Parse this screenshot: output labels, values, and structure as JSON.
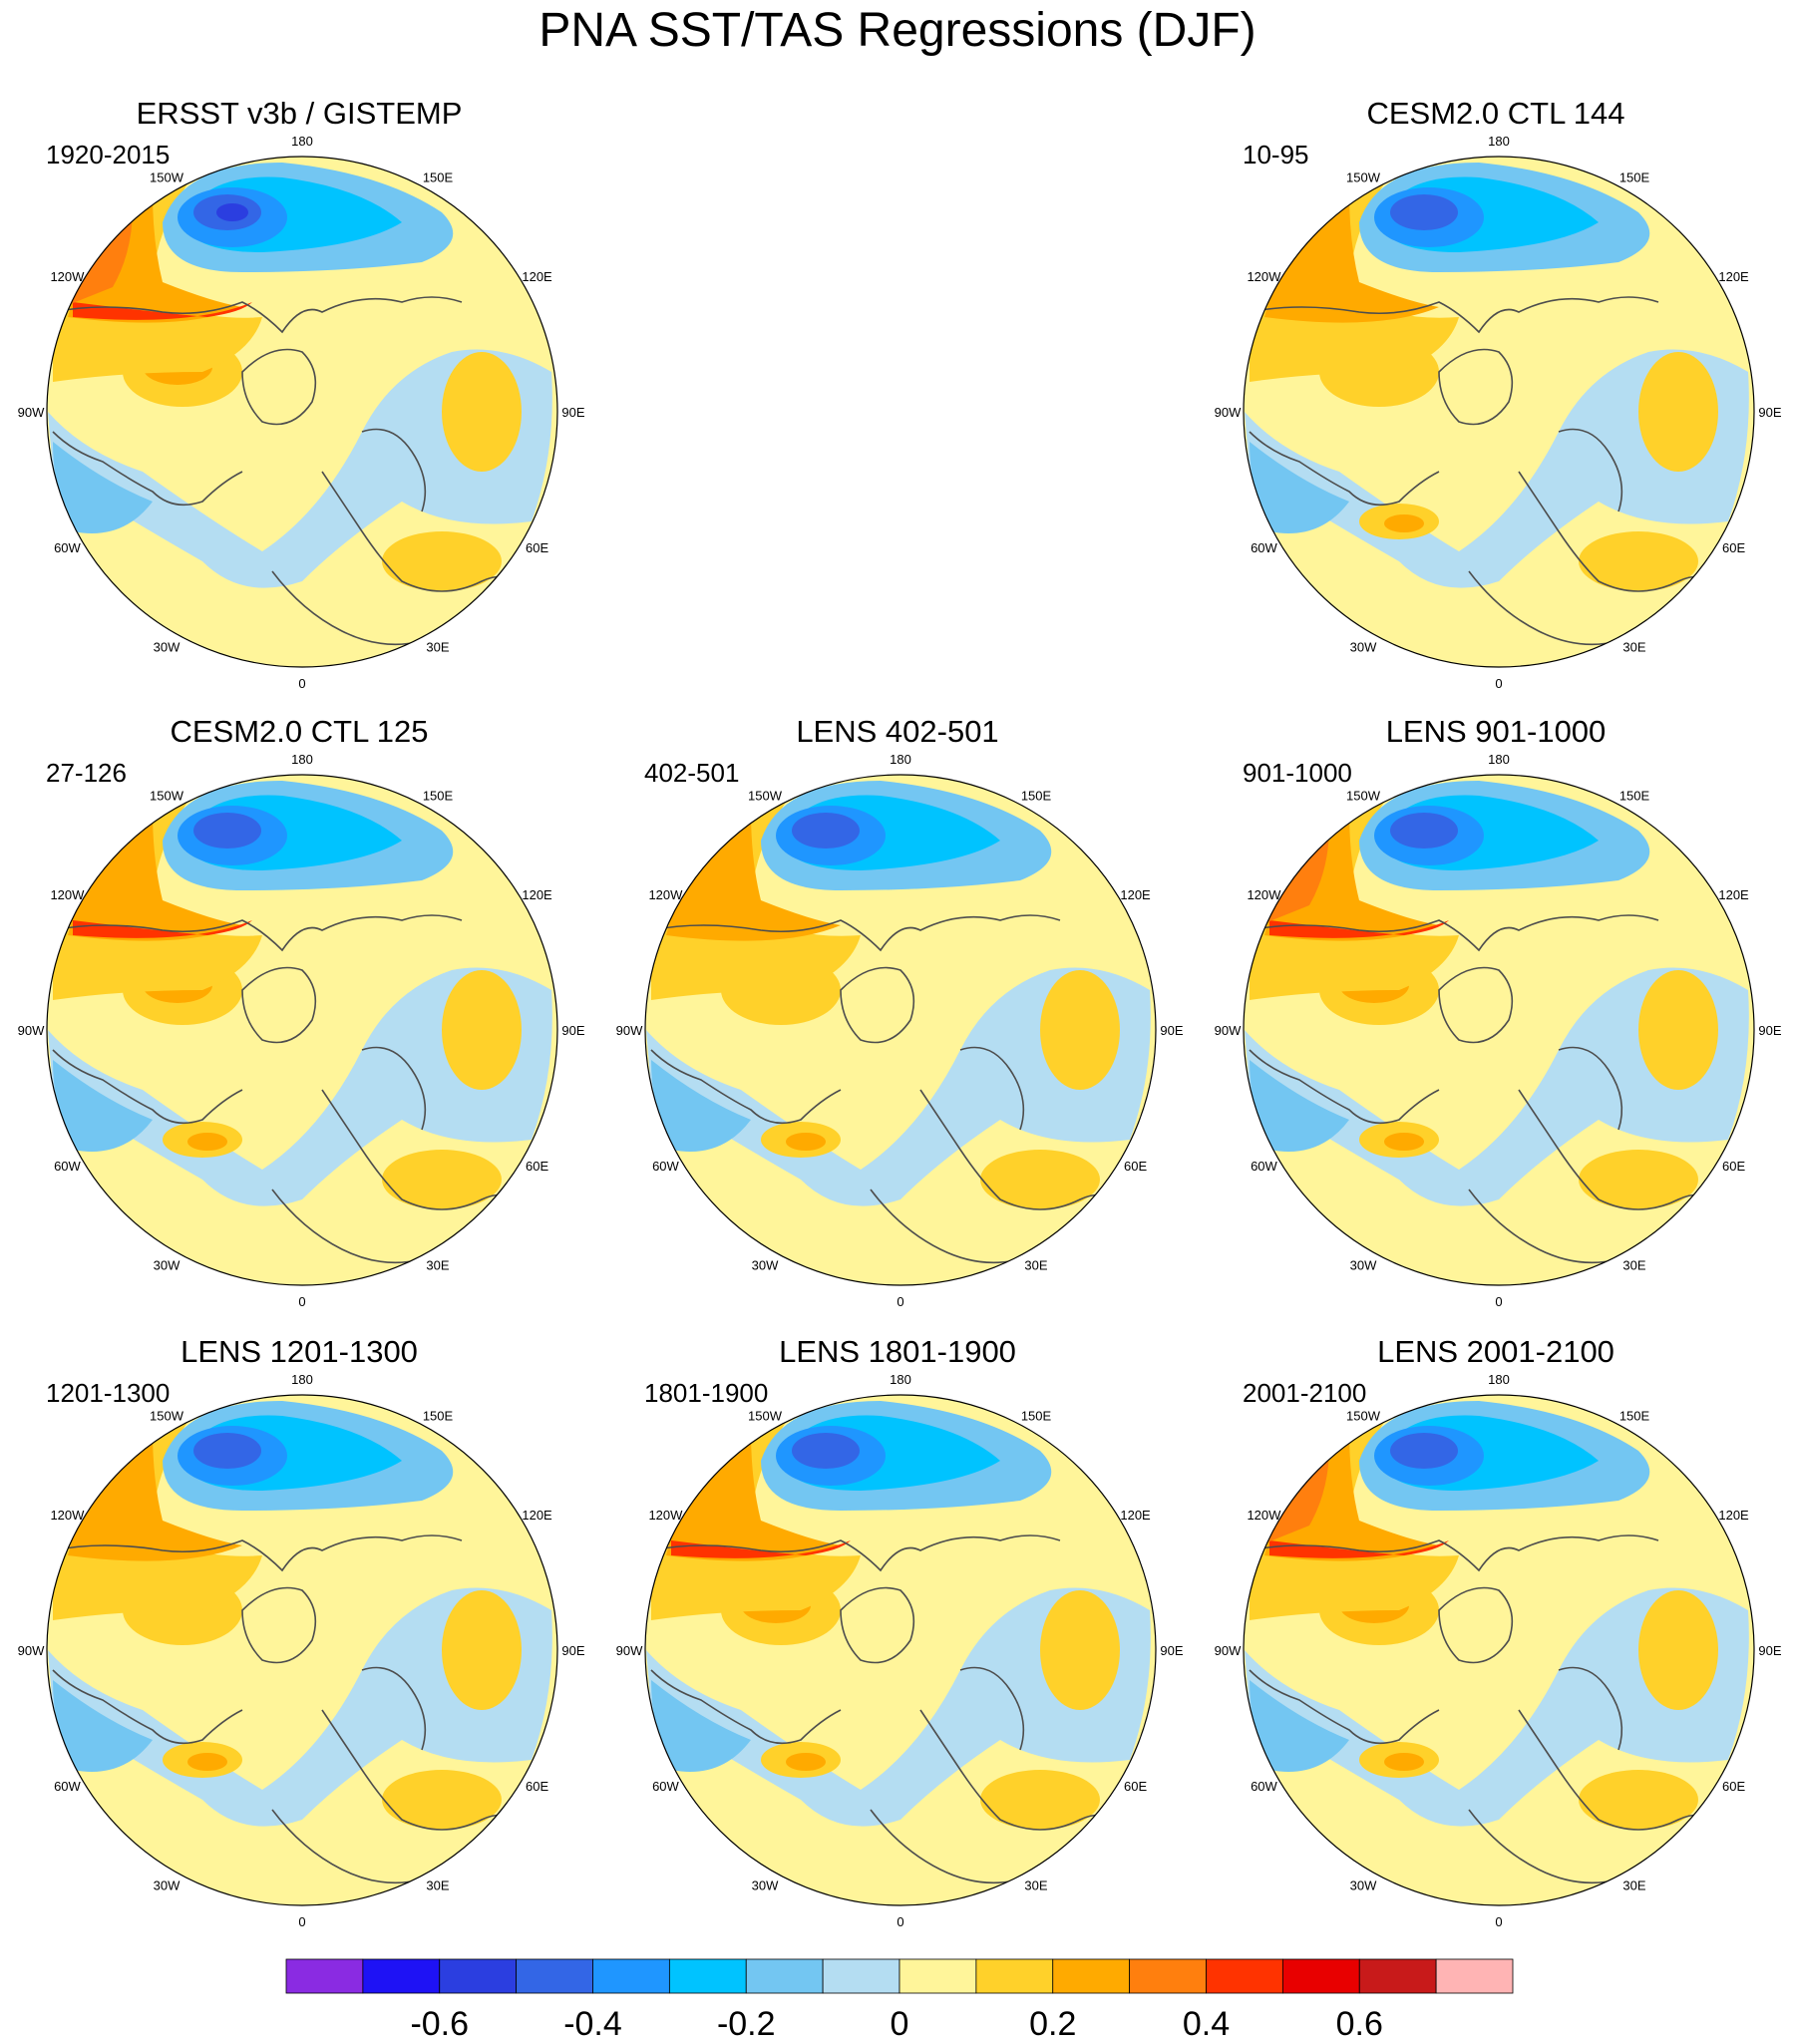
{
  "title": "PNA SST/TAS Regressions (DJF)",
  "lon_labels": [
    "180",
    "150E",
    "120E",
    "90E",
    "60E",
    "30E",
    "0",
    "30W",
    "60W",
    "90W",
    "120W",
    "150W"
  ],
  "panels": [
    {
      "title": "ERSST v3b / GISTEMP",
      "period": "1920-2015",
      "style": "obs"
    },
    {
      "title": "CESM2.0 CTL 144",
      "period": "10-95",
      "style": "ctl144"
    },
    {
      "title": "CESM2.0 CTL 125",
      "period": "27-126",
      "style": "ctl125"
    },
    {
      "title": "LENS 402-501",
      "period": "402-501",
      "style": "l402"
    },
    {
      "title": "LENS 901-1000",
      "period": "901-1000",
      "style": "l901"
    },
    {
      "title": "LENS 1201-1300",
      "period": "1201-1300",
      "style": "l1201"
    },
    {
      "title": "LENS 1801-1900",
      "period": "1801-1900",
      "style": "l1801"
    },
    {
      "title": "LENS 2001-2100",
      "period": "2001-2100",
      "style": "l2001"
    }
  ],
  "colorbar": {
    "colors": [
      "#8a2be2",
      "#1e12f5",
      "#2b3ee0",
      "#3366e6",
      "#1f96ff",
      "#00c3ff",
      "#73c6f2",
      "#b4ddf2",
      "#fff59a",
      "#ffd12a",
      "#ffaa00",
      "#ff7f0e",
      "#ff3300",
      "#e80000",
      "#c81a1a",
      "#ffb4b4"
    ],
    "labels": [
      "-0.6",
      "-0.4",
      "-0.2",
      "0",
      "0.2",
      "0.4",
      "0.6"
    ]
  },
  "palette": {
    "background": "#fff59a",
    "neg1": "#b4ddf2",
    "neg2": "#73c6f2",
    "neg3": "#00c3ff",
    "neg4": "#1f96ff",
    "neg5": "#3366e6",
    "neg6": "#2b3ee0",
    "neg7": "#1e12f5",
    "pos1": "#ffd12a",
    "pos2": "#ffaa00",
    "pos3": "#ff7f0e",
    "pos4": "#ff3300",
    "pos5": "#e80000",
    "coast": "#4d4d4d"
  }
}
